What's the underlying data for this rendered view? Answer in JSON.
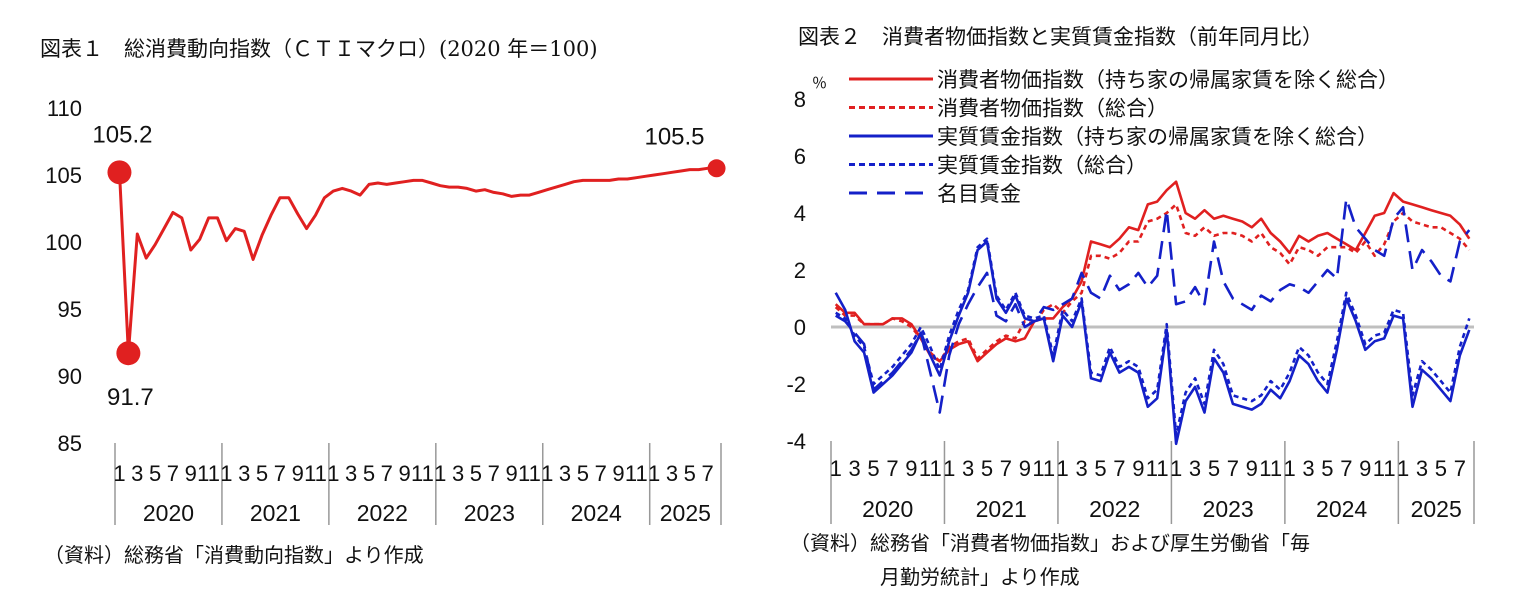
{
  "chart_data": [
    {
      "type": "line",
      "title": "図表１　総消費動向指数（ＣＴＩマクロ）(2020 年＝100)",
      "source": "（資料）総務省「消費動向指数」より作成",
      "ylim": [
        85,
        110
      ],
      "yticks": [
        "110",
        "105",
        "100",
        "95",
        "90",
        "85"
      ],
      "month_labels": [
        "1",
        "3",
        "5",
        "7",
        "9",
        "11"
      ],
      "month_labels_2025": [
        "1",
        "3",
        "5",
        "7"
      ],
      "years": [
        "2020",
        "2021",
        "2022",
        "2023",
        "2024",
        "2025"
      ],
      "months_total": 68,
      "grid": false,
      "color": "#e02020",
      "series": [
        {
          "values": [
            105.2,
            91.7,
            100.6,
            98.8,
            99.8,
            101.0,
            102.2,
            101.8,
            99.4,
            100.2,
            101.8,
            101.8,
            100.1,
            101.0,
            100.8,
            98.7,
            100.5,
            102.0,
            103.3,
            103.3,
            102.1,
            101.0,
            102.0,
            103.3,
            103.8,
            104.0,
            103.8,
            103.5,
            104.3,
            104.4,
            104.3,
            104.4,
            104.5,
            104.6,
            104.6,
            104.4,
            104.2,
            104.1,
            104.1,
            104.0,
            103.8,
            103.9,
            103.7,
            103.6,
            103.4,
            103.5,
            103.5,
            103.7,
            103.9,
            104.1,
            104.3,
            104.5,
            104.6,
            104.6,
            104.6,
            104.6,
            104.7,
            104.7,
            104.8,
            104.9,
            105.0,
            105.1,
            105.2,
            105.3,
            105.4,
            105.4,
            105.5,
            105.5
          ]
        }
      ],
      "annotations": [
        {
          "text": "105.2",
          "index": 0,
          "value": 105.2
        },
        {
          "text": "91.7",
          "index": 1,
          "value": 91.7
        },
        {
          "text": "105.5",
          "index": 67,
          "value": 105.5
        }
      ]
    },
    {
      "type": "line",
      "title": "図表２　消費者物価指数と実質賃金指数（前年同月比）",
      "source": [
        "（資料）総務省「消費者物価指数」および厚生労働省「毎",
        "月勤労統計」より作成"
      ],
      "yunit": "％",
      "ylim": [
        -4,
        8
      ],
      "yticks": [
        "8",
        "6",
        "4",
        "2",
        "0",
        "-2",
        "-4"
      ],
      "month_labels": [
        "1",
        "3",
        "5",
        "7",
        "9",
        "11"
      ],
      "month_labels_2025": [
        "1",
        "3",
        "5",
        "7"
      ],
      "years": [
        "2020",
        "2021",
        "2022",
        "2023",
        "2024",
        "2025"
      ],
      "months_total": 68,
      "zero_line": true,
      "series": [
        {
          "name": "消費者物価指数（持ち家の帰属家賃を除く総合）",
          "color": "#e02020",
          "dash": "solid",
          "values": [
            0.8,
            0.5,
            0.5,
            0.1,
            0.1,
            0.1,
            0.3,
            0.3,
            0.1,
            -0.4,
            -1.0,
            -1.2,
            -0.8,
            -0.6,
            -0.5,
            -1.2,
            -0.9,
            -0.6,
            -0.4,
            -0.5,
            -0.4,
            0.2,
            0.3,
            0.3,
            0.7,
            1.0,
            1.6,
            3.0,
            2.9,
            2.8,
            3.1,
            3.5,
            3.4,
            4.3,
            4.4,
            4.8,
            5.1,
            4.0,
            3.8,
            4.1,
            3.8,
            3.9,
            3.8,
            3.7,
            3.5,
            3.8,
            3.3,
            3.0,
            2.6,
            3.2,
            3.0,
            3.2,
            3.3,
            3.1,
            2.9,
            2.7,
            3.3,
            3.9,
            4.0,
            4.7,
            4.4,
            4.3,
            4.2,
            4.1,
            4.0,
            3.9,
            3.6,
            3.1
          ]
        },
        {
          "name": "消費者物価指数（総合）",
          "color": "#e02020",
          "dash": "short",
          "values": [
            0.7,
            0.4,
            0.4,
            0.1,
            0.1,
            0.1,
            0.3,
            0.2,
            0.0,
            -0.4,
            -0.9,
            -1.2,
            -0.7,
            -0.5,
            -0.4,
            -1.1,
            -0.8,
            -0.5,
            -0.3,
            -0.4,
            0.2,
            0.1,
            0.6,
            0.8,
            0.5,
            0.9,
            1.2,
            2.5,
            2.5,
            2.4,
            2.6,
            3.0,
            3.0,
            3.7,
            3.8,
            4.0,
            4.3,
            3.3,
            3.2,
            3.5,
            3.2,
            3.3,
            3.3,
            3.2,
            3.0,
            3.3,
            2.8,
            2.6,
            2.2,
            2.8,
            2.7,
            2.5,
            2.8,
            2.8,
            2.8,
            2.6,
            3.0,
            2.5,
            2.9,
            3.7,
            4.0,
            3.7,
            3.6,
            3.5,
            3.5,
            3.3,
            3.1,
            2.7
          ]
        },
        {
          "name": "実質賃金指数（持ち家の帰属家賃を除く総合）",
          "color": "#1420c8",
          "dash": "solid",
          "values": [
            1.2,
            0.6,
            -0.5,
            -0.9,
            -2.3,
            -2.0,
            -1.7,
            -1.3,
            -0.9,
            -0.2,
            -1.0,
            -1.7,
            -0.5,
            0.4,
            1.2,
            2.7,
            3.0,
            1.0,
            0.5,
            1.1,
            0.3,
            0.2,
            0.3,
            -1.2,
            0.4,
            0.0,
            0.9,
            -1.8,
            -1.9,
            -0.9,
            -1.6,
            -1.4,
            -1.6,
            -2.8,
            -2.5,
            -0.1,
            -4.1,
            -2.6,
            -2.1,
            -3.0,
            -1.1,
            -1.6,
            -2.7,
            -2.8,
            -2.9,
            -2.7,
            -2.2,
            -2.5,
            -1.9,
            -1.0,
            -1.3,
            -1.9,
            -2.3,
            -0.8,
            1.0,
            0.2,
            -0.8,
            -0.5,
            -0.4,
            0.4,
            0.3,
            -2.8,
            -1.5,
            -1.8,
            -2.2,
            -2.6,
            -1.0,
            -0.1
          ]
        },
        {
          "name": "実質賃金指数（総合）",
          "color": "#1420c8",
          "dash": "short",
          "values": [
            0.5,
            0.3,
            -0.3,
            -0.7,
            -2.0,
            -1.7,
            -1.4,
            -1.0,
            -0.6,
            0.0,
            -0.7,
            -1.5,
            -0.3,
            0.6,
            1.3,
            2.8,
            3.1,
            1.1,
            0.6,
            1.2,
            0.4,
            0.3,
            0.4,
            -1.0,
            0.6,
            0.2,
            1.0,
            -1.6,
            -1.7,
            -0.7,
            -1.4,
            -1.2,
            -1.4,
            -2.5,
            -2.2,
            0.1,
            -3.8,
            -2.3,
            -1.8,
            -2.7,
            -0.8,
            -1.3,
            -2.4,
            -2.5,
            -2.6,
            -2.4,
            -1.9,
            -2.2,
            -1.6,
            -0.7,
            -1.0,
            -1.6,
            -2.0,
            -0.5,
            1.2,
            0.4,
            -0.6,
            -0.3,
            -0.2,
            0.6,
            0.5,
            -2.4,
            -1.2,
            -1.5,
            -1.9,
            -2.3,
            -0.7,
            0.3
          ]
        },
        {
          "name": "名目賃金",
          "color": "#1420c8",
          "dash": "long",
          "values": [
            0.4,
            0.2,
            -0.2,
            -0.6,
            -2.2,
            -1.9,
            -1.6,
            -1.2,
            -0.8,
            -0.2,
            -1.6,
            -3.0,
            -1.0,
            0.1,
            0.8,
            1.4,
            1.9,
            0.4,
            0.2,
            0.8,
            0.0,
            0.2,
            0.7,
            0.6,
            0.8,
            1.0,
            1.9,
            1.2,
            1.0,
            1.8,
            1.3,
            1.5,
            1.9,
            1.4,
            1.8,
            4.1,
            0.8,
            0.9,
            1.4,
            0.8,
            3.0,
            1.6,
            1.0,
            0.8,
            0.6,
            1.1,
            0.9,
            1.3,
            1.5,
            1.4,
            1.2,
            1.6,
            2.0,
            1.7,
            4.5,
            3.5,
            3.1,
            2.7,
            2.5,
            3.8,
            4.2,
            2.0,
            2.7,
            2.3,
            1.8,
            1.6,
            3.0,
            3.4
          ]
        }
      ]
    }
  ]
}
